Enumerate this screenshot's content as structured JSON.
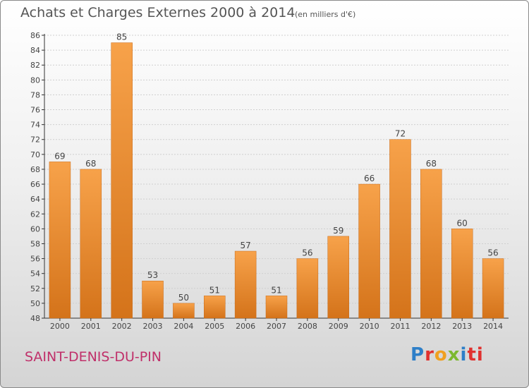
{
  "header": {
    "title": "Achats et Charges Externes 2000 à 2014",
    "subtitle": "(en milliers d'€)"
  },
  "footer": {
    "place": "SAINT-DENIS-DU-PIN",
    "logo_text": "Proxiti"
  },
  "colors": {
    "bar_top": "#f7a24a",
    "bar_bottom": "#d4731a",
    "place_text": "#c0306a"
  },
  "chart_data": {
    "type": "bar",
    "categories": [
      "2000",
      "2001",
      "2002",
      "2003",
      "2004",
      "2005",
      "2006",
      "2007",
      "2008",
      "2009",
      "2010",
      "2011",
      "2012",
      "2013",
      "2014"
    ],
    "values": [
      69,
      68,
      85,
      53,
      50,
      51,
      57,
      51,
      56,
      59,
      66,
      72,
      68,
      60,
      56
    ],
    "title": "Achats et Charges Externes 2000 à 2014",
    "subtitle": "(en milliers d'€)",
    "ylim": [
      48,
      86
    ],
    "yticks": [
      48,
      50,
      52,
      54,
      56,
      58,
      60,
      62,
      64,
      66,
      68,
      70,
      72,
      74,
      76,
      78,
      80,
      82,
      84,
      86
    ],
    "grid": true,
    "legend": "none"
  }
}
